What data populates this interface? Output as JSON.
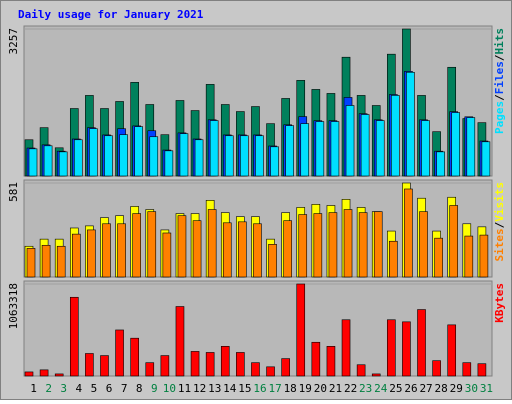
{
  "title": "Daily usage for January 2021",
  "legend_separator": "/",
  "categories": [
    "1",
    "2",
    "3",
    "4",
    "5",
    "6",
    "7",
    "8",
    "9",
    "10",
    "11",
    "12",
    "13",
    "14",
    "15",
    "16",
    "17",
    "18",
    "19",
    "20",
    "21",
    "22",
    "23",
    "24",
    "25",
    "26",
    "27",
    "28",
    "29",
    "30",
    "31"
  ],
  "category_colors": [
    "#000000",
    "#008040",
    "#008040",
    "#000000",
    "#000000",
    "#000000",
    "#000000",
    "#000000",
    "#008040",
    "#008040",
    "#000000",
    "#000000",
    "#000000",
    "#000000",
    "#000000",
    "#008040",
    "#008040",
    "#000000",
    "#000000",
    "#000000",
    "#000000",
    "#000000",
    "#008040",
    "#008040",
    "#000000",
    "#000000",
    "#000000",
    "#000000",
    "#000000",
    "#008040",
    "#008040"
  ],
  "chart_data": [
    {
      "type": "bar",
      "ylim": [
        0,
        3257
      ],
      "yticks": [
        3257
      ],
      "series": [
        {
          "name": "Pages",
          "color": "#00e0ff",
          "values": [
            602,
            669,
            535,
            803,
            1048,
            892,
            915,
            1093,
            870,
            558,
            937,
            803,
            1227,
            892,
            892,
            892,
            647,
            1115,
            1160,
            1205,
            1205,
            1562,
            1361,
            1227,
            1785,
            2298,
            1227,
            535,
            1405,
            1294,
            758
          ]
        },
        {
          "name": "Files",
          "color": "#0040ff",
          "values": [
            620,
            690,
            550,
            820,
            1070,
            910,
            1048,
            1110,
            1003,
            575,
            955,
            820,
            1245,
            910,
            910,
            910,
            665,
            1135,
            1316,
            1225,
            1225,
            1740,
            1380,
            1245,
            1805,
            2318,
            1245,
            550,
            1425,
            1312,
            775
          ]
        },
        {
          "name": "Hits",
          "color": "#00805c",
          "values": [
            803,
            1071,
            625,
            1495,
            1785,
            1495,
            1651,
            2075,
            1584,
            915,
            1673,
            1450,
            2030,
            1584,
            1428,
            1539,
            1160,
            1718,
            2119,
            1918,
            1829,
            2632,
            1785,
            1562,
            2699,
            3257,
            1785,
            982,
            2409,
            1272,
            1182
          ]
        }
      ]
    },
    {
      "type": "bar",
      "ylim": [
        0,
        581
      ],
      "yticks": [
        581
      ],
      "series": [
        {
          "name": "Sites",
          "color": "#ff8000",
          "values": [
            177,
            196,
            190,
            265,
            291,
            329,
            329,
            392,
            404,
            272,
            379,
            348,
            417,
            335,
            341,
            329,
            202,
            348,
            386,
            392,
            398,
            417,
            398,
            404,
            221,
            544,
            404,
            240,
            442,
            253,
            259
          ]
        },
        {
          "name": "Visits",
          "color": "#ffff00",
          "values": [
            190,
            234,
            234,
            303,
            316,
            367,
            379,
            436,
            417,
            291,
            392,
            392,
            474,
            398,
            373,
            373,
            234,
            398,
            430,
            449,
            442,
            480,
            430,
            404,
            284,
            581,
            487,
            284,
            493,
            329,
            310
          ]
        }
      ]
    },
    {
      "type": "bar",
      "ylim": [
        0,
        1063318
      ],
      "yticks": [
        1063318
      ],
      "series": [
        {
          "name": "KBytes",
          "color": "#ff0000",
          "values": [
            47000,
            71000,
            24000,
            910000,
            260000,
            236000,
            532000,
            437000,
            154000,
            236000,
            803000,
            284000,
            272000,
            343000,
            272000,
            154000,
            106000,
            201000,
            1063318,
            390000,
            343000,
            650000,
            130000,
            24000,
            650000,
            626000,
            768000,
            177000,
            591000,
            154000,
            142000
          ]
        }
      ]
    }
  ]
}
